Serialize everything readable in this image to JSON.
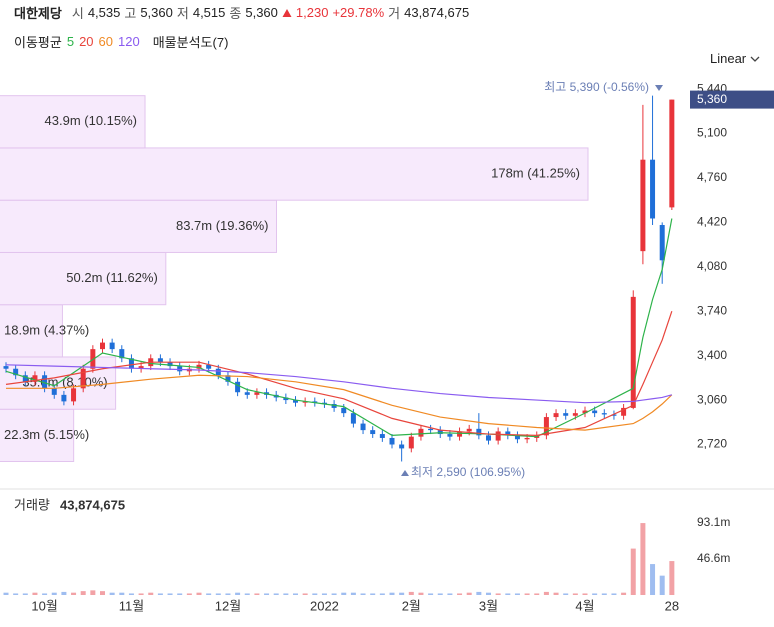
{
  "header": {
    "name": "대한제당",
    "open_label": "시",
    "open": "4,535",
    "high_label": "고",
    "high": "5,360",
    "low_label": "저",
    "low": "4,515",
    "close_label": "종",
    "close": "5,360",
    "change": "1,230",
    "change_pct": "+29.78%",
    "volume_label": "거",
    "volume": "43,874,675"
  },
  "toolbar": {
    "ma_label": "이동평균",
    "profile_label": "매물분석도(7)",
    "scale": "Linear"
  },
  "chart_data": [
    {
      "type": "candlestick",
      "categories": [
        null,
        null,
        null,
        null,
        "10월",
        null,
        null,
        null,
        null,
        null,
        null,
        null,
        null,
        "11월",
        null,
        null,
        null,
        null,
        null,
        null,
        null,
        null,
        null,
        "12월",
        null,
        null,
        null,
        null,
        null,
        null,
        null,
        null,
        null,
        "2022",
        null,
        null,
        null,
        null,
        null,
        null,
        null,
        null,
        "2월",
        null,
        null,
        null,
        null,
        null,
        null,
        null,
        "3월",
        null,
        null,
        null,
        null,
        null,
        null,
        null,
        null,
        null,
        "4월",
        null,
        null,
        null,
        null,
        null,
        null,
        null,
        null,
        "28"
      ],
      "open": [
        3320,
        3300,
        3250,
        3200,
        3250,
        3150,
        3100,
        3050,
        3150,
        3300,
        3450,
        3500,
        3450,
        3380,
        3300,
        3320,
        3380,
        3350,
        3320,
        3280,
        3300,
        3330,
        3300,
        3250,
        3200,
        3120,
        3100,
        3120,
        3100,
        3080,
        3060,
        3040,
        3050,
        3040,
        3030,
        3000,
        2960,
        2880,
        2830,
        2800,
        2770,
        2720,
        2690,
        2780,
        2840,
        2830,
        2800,
        2780,
        2820,
        2840,
        2790,
        2750,
        2820,
        2790,
        2760,
        2770,
        2790,
        2930,
        2960,
        2940,
        2960,
        2980,
        2960,
        2950,
        2940,
        3000,
        4200,
        4900,
        4400,
        4535
      ],
      "high": [
        3350,
        3330,
        3280,
        3280,
        3280,
        3180,
        3130,
        3180,
        3330,
        3480,
        3530,
        3530,
        3480,
        3410,
        3350,
        3410,
        3410,
        3380,
        3350,
        3330,
        3360,
        3360,
        3330,
        3280,
        3230,
        3150,
        3150,
        3150,
        3130,
        3110,
        3090,
        3080,
        3080,
        3070,
        3060,
        3030,
        2990,
        2910,
        2860,
        2830,
        2800,
        2750,
        2810,
        2870,
        2870,
        2860,
        2830,
        2850,
        2870,
        2960,
        2820,
        2850,
        2850,
        2820,
        2800,
        2820,
        2960,
        2990,
        2990,
        2990,
        3010,
        3010,
        2990,
        2980,
        3030,
        3900,
        5320,
        5390,
        4420,
        5360
      ],
      "low": [
        3270,
        3220,
        3170,
        3170,
        3120,
        3070,
        3020,
        3020,
        3120,
        3270,
        3420,
        3420,
        3350,
        3270,
        3270,
        3290,
        3320,
        3290,
        3250,
        3250,
        3270,
        3270,
        3220,
        3170,
        3090,
        3070,
        3070,
        3070,
        3050,
        3030,
        3010,
        3010,
        3010,
        3000,
        2970,
        2930,
        2850,
        2800,
        2770,
        2740,
        2690,
        2590,
        2660,
        2750,
        2800,
        2770,
        2750,
        2750,
        2790,
        2760,
        2720,
        2720,
        2760,
        2730,
        2730,
        2740,
        2760,
        2900,
        2910,
        2910,
        2930,
        2930,
        2920,
        2910,
        2910,
        2990,
        4100,
        4400,
        3950,
        4515
      ],
      "close": [
        3300,
        3250,
        3200,
        3250,
        3150,
        3100,
        3050,
        3150,
        3300,
        3450,
        3500,
        3450,
        3380,
        3300,
        3320,
        3380,
        3350,
        3320,
        3280,
        3300,
        3330,
        3300,
        3250,
        3200,
        3120,
        3100,
        3120,
        3100,
        3080,
        3060,
        3040,
        3050,
        3040,
        3030,
        3000,
        2960,
        2880,
        2830,
        2800,
        2770,
        2720,
        2690,
        2780,
        2840,
        2830,
        2800,
        2780,
        2820,
        2840,
        2790,
        2750,
        2820,
        2790,
        2760,
        2770,
        2790,
        2930,
        2960,
        2940,
        2960,
        2980,
        2960,
        2950,
        2940,
        3000,
        3850,
        4900,
        4450,
        4130,
        5360
      ],
      "up_color": "#e8343a",
      "down_color": "#1f6fd8",
      "series": [
        {
          "name": "5",
          "color": "#2db34a",
          "x": [
            0,
            5,
            10,
            15,
            20,
            25,
            30,
            35,
            40,
            45,
            50,
            55,
            60,
            65,
            66,
            67,
            68,
            69
          ],
          "values": [
            3280,
            3170,
            3420,
            3340,
            3310,
            3140,
            3060,
            3010,
            2790,
            2810,
            2800,
            2780,
            2960,
            3150,
            3540,
            3830,
            4060,
            4450
          ]
        },
        {
          "name": "20",
          "color": "#e8453c",
          "x": [
            0,
            5,
            10,
            15,
            20,
            25,
            30,
            35,
            40,
            45,
            50,
            55,
            60,
            65,
            66,
            67,
            68,
            69
          ],
          "values": [
            3180,
            3230,
            3300,
            3350,
            3350,
            3260,
            3150,
            3070,
            2920,
            2830,
            2800,
            2790,
            2850,
            3020,
            3180,
            3350,
            3520,
            3740
          ]
        },
        {
          "name": "60",
          "color": "#f08a24",
          "x": [
            0,
            5,
            10,
            15,
            20,
            25,
            30,
            35,
            40,
            45,
            50,
            55,
            60,
            65,
            66,
            67,
            68,
            69
          ],
          "values": [
            3150,
            3150,
            3180,
            3220,
            3250,
            3240,
            3200,
            3140,
            3020,
            2930,
            2880,
            2850,
            2830,
            2880,
            2920,
            2970,
            3030,
            3100
          ]
        },
        {
          "name": "120",
          "color": "#8a5cf0",
          "x": [
            0,
            5,
            10,
            15,
            20,
            25,
            30,
            35,
            40,
            45,
            50,
            55,
            60,
            65,
            66,
            67,
            68,
            69
          ],
          "values": [
            3330,
            3320,
            3310,
            3300,
            3290,
            3270,
            3240,
            3200,
            3150,
            3110,
            3080,
            3060,
            3040,
            3050,
            3060,
            3070,
            3080,
            3100
          ]
        }
      ],
      "ylim": [
        2410,
        5510
      ],
      "yticks": [
        {
          "value": 2720,
          "label": "2,720"
        },
        {
          "value": 3060,
          "label": "3,060"
        },
        {
          "value": 3400,
          "label": "3,400"
        },
        {
          "value": 3740,
          "label": "3,740"
        },
        {
          "value": 4080,
          "label": "4,080"
        },
        {
          "value": 4420,
          "label": "4,420"
        },
        {
          "value": 4760,
          "label": "4,760"
        },
        {
          "value": 5100,
          "label": "5,100"
        },
        {
          "value": 5440,
          "label": "5,440"
        }
      ],
      "last_label": {
        "value": 5360,
        "label": "5,360"
      },
      "annotations": [
        {
          "text": "최고 5,390 (-0.56%)"
        },
        {
          "text": "최저 2,590 (106.95%)"
        }
      ],
      "volume_profile": {
        "bins": [
          2590,
          2990,
          3390,
          3790,
          4190,
          4590,
          4990,
          5390
        ],
        "values": [
          22.3,
          35.0,
          18.9,
          50.2,
          83.7,
          178,
          43.9
        ],
        "percents": [
          5.15,
          8.1,
          4.37,
          11.62,
          19.36,
          41.25,
          10.15
        ],
        "value_labels": [
          "22.3m (5.15%)",
          "35.0m (8.10%)",
          "18.9m (4.37%)",
          "50.2m (11.62%)",
          "83.7m (19.36%)",
          "178m (41.25%)",
          "43.9m (10.15%)"
        ],
        "color": "#f7eafc"
      }
    },
    {
      "type": "bar",
      "title": "거래량",
      "title_value": "43,874,675",
      "values": [
        3,
        2,
        2,
        3,
        2,
        3,
        4,
        3,
        5,
        6,
        5,
        3,
        3,
        2,
        2,
        3,
        2,
        2,
        2,
        2,
        3,
        2,
        2,
        2,
        3,
        2,
        2,
        2,
        2,
        2,
        2,
        2,
        2,
        2,
        2,
        3,
        3,
        2,
        2,
        2,
        3,
        3,
        4,
        3,
        2,
        2,
        2,
        2,
        3,
        4,
        3,
        2,
        2,
        2,
        2,
        2,
        4,
        3,
        2,
        2,
        2,
        2,
        2,
        2,
        3,
        60,
        93,
        40,
        25,
        43.874675
      ],
      "up_color": "#f2a2a6",
      "down_color": "#9fbdf0",
      "ylim": [
        0,
        129.3
      ],
      "yticks": [
        {
          "value": 46.6,
          "label": "46.6m"
        },
        {
          "value": 93.1,
          "label": "93.1m"
        }
      ]
    }
  ]
}
